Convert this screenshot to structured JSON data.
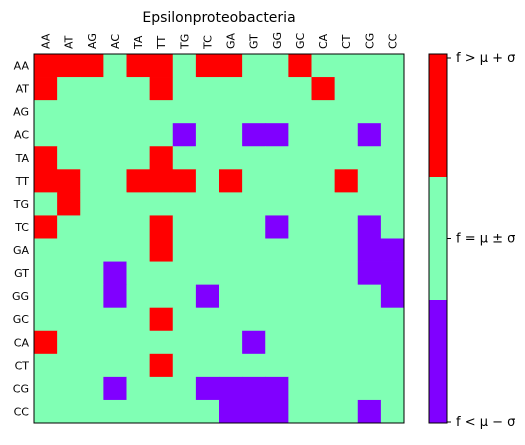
{
  "chart_data": {
    "type": "heatmap",
    "title": "Epsilonproteobacteria",
    "x_categories": [
      "AA",
      "AT",
      "AG",
      "AC",
      "TA",
      "TT",
      "TG",
      "TC",
      "GA",
      "GT",
      "GG",
      "GC",
      "CA",
      "CT",
      "CG",
      "CC"
    ],
    "y_categories": [
      "AA",
      "AT",
      "AG",
      "AC",
      "TA",
      "TT",
      "TG",
      "TC",
      "GA",
      "GT",
      "GG",
      "GC",
      "CA",
      "CT",
      "CG",
      "CC"
    ],
    "value_legend": {
      "-1": "f<μ−σ",
      "0": "f=μ±σ",
      "1": "f>μ+σ"
    },
    "values": [
      [
        1,
        1,
        1,
        0,
        1,
        1,
        0,
        1,
        1,
        0,
        0,
        1,
        0,
        0,
        0,
        0
      ],
      [
        1,
        0,
        0,
        0,
        0,
        1,
        0,
        0,
        0,
        0,
        0,
        0,
        1,
        0,
        0,
        0
      ],
      [
        0,
        0,
        0,
        0,
        0,
        0,
        0,
        0,
        0,
        0,
        0,
        0,
        0,
        0,
        0,
        0
      ],
      [
        0,
        0,
        0,
        0,
        0,
        0,
        -1,
        0,
        0,
        -1,
        -1,
        0,
        0,
        0,
        -1,
        0
      ],
      [
        1,
        0,
        0,
        0,
        0,
        1,
        0,
        0,
        0,
        0,
        0,
        0,
        0,
        0,
        0,
        0
      ],
      [
        1,
        1,
        0,
        0,
        1,
        1,
        1,
        0,
        1,
        0,
        0,
        0,
        0,
        1,
        0,
        0
      ],
      [
        0,
        1,
        0,
        0,
        0,
        0,
        0,
        0,
        0,
        0,
        0,
        0,
        0,
        0,
        0,
        0
      ],
      [
        1,
        0,
        0,
        0,
        0,
        1,
        0,
        0,
        0,
        0,
        -1,
        0,
        0,
        0,
        -1,
        0
      ],
      [
        0,
        0,
        0,
        0,
        0,
        1,
        0,
        0,
        0,
        0,
        0,
        0,
        0,
        0,
        -1,
        -1
      ],
      [
        0,
        0,
        0,
        -1,
        0,
        0,
        0,
        0,
        0,
        0,
        0,
        0,
        0,
        0,
        -1,
        -1
      ],
      [
        0,
        0,
        0,
        -1,
        0,
        0,
        0,
        -1,
        0,
        0,
        0,
        0,
        0,
        0,
        0,
        -1
      ],
      [
        0,
        0,
        0,
        0,
        0,
        1,
        0,
        0,
        0,
        0,
        0,
        0,
        0,
        0,
        0,
        0
      ],
      [
        1,
        0,
        0,
        0,
        0,
        0,
        0,
        0,
        0,
        -1,
        0,
        0,
        0,
        0,
        0,
        0
      ],
      [
        0,
        0,
        0,
        0,
        0,
        1,
        0,
        0,
        0,
        0,
        0,
        0,
        0,
        0,
        0,
        0
      ],
      [
        0,
        0,
        0,
        -1,
        0,
        0,
        0,
        -1,
        -1,
        -1,
        -1,
        0,
        0,
        0,
        0,
        0
      ],
      [
        0,
        0,
        0,
        0,
        0,
        0,
        0,
        0,
        -1,
        -1,
        -1,
        0,
        0,
        0,
        -1,
        0
      ]
    ],
    "colors": {
      "high": "#ff0000",
      "mid": "#80ffb4",
      "low": "#8000ff"
    },
    "colorbar_labels": [
      "f > μ + σ",
      "f = μ ± σ",
      "f < μ − σ"
    ],
    "grid": false,
    "legend": "colorbar-right"
  }
}
